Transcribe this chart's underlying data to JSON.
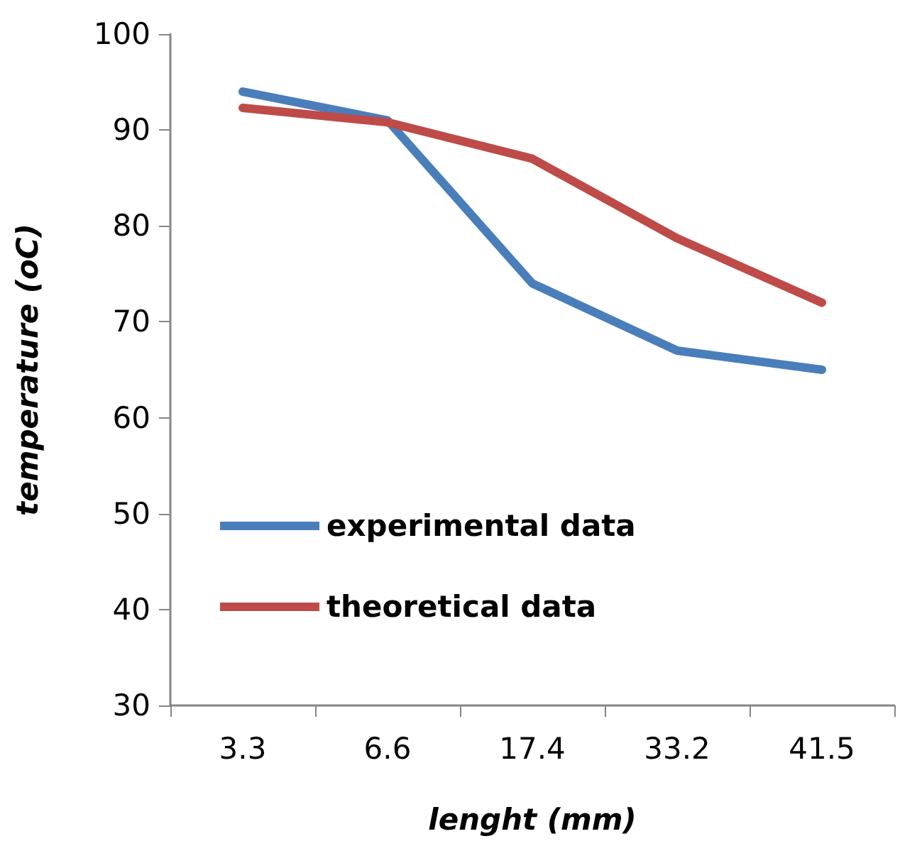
{
  "chart_data": {
    "type": "line",
    "xlabel": "lenght (mm)",
    "ylabel": "temperature (oC)",
    "categories": [
      "3.3",
      "6.6",
      "17.4",
      "33.2",
      "41.5"
    ],
    "series": [
      {
        "name": "experimental data",
        "color": "#4a7ebb",
        "values": [
          94,
          91,
          74,
          67,
          65
        ]
      },
      {
        "name": "theoretical data",
        "color": "#be4b48",
        "values": [
          92.3,
          90.8,
          87,
          78.7,
          72
        ]
      }
    ],
    "ylim": [
      30,
      100
    ],
    "yticks": [
      30,
      40,
      50,
      60,
      70,
      80,
      90,
      100
    ],
    "grid": false,
    "legend": "left",
    "marker": "none",
    "line_style": "solid"
  }
}
